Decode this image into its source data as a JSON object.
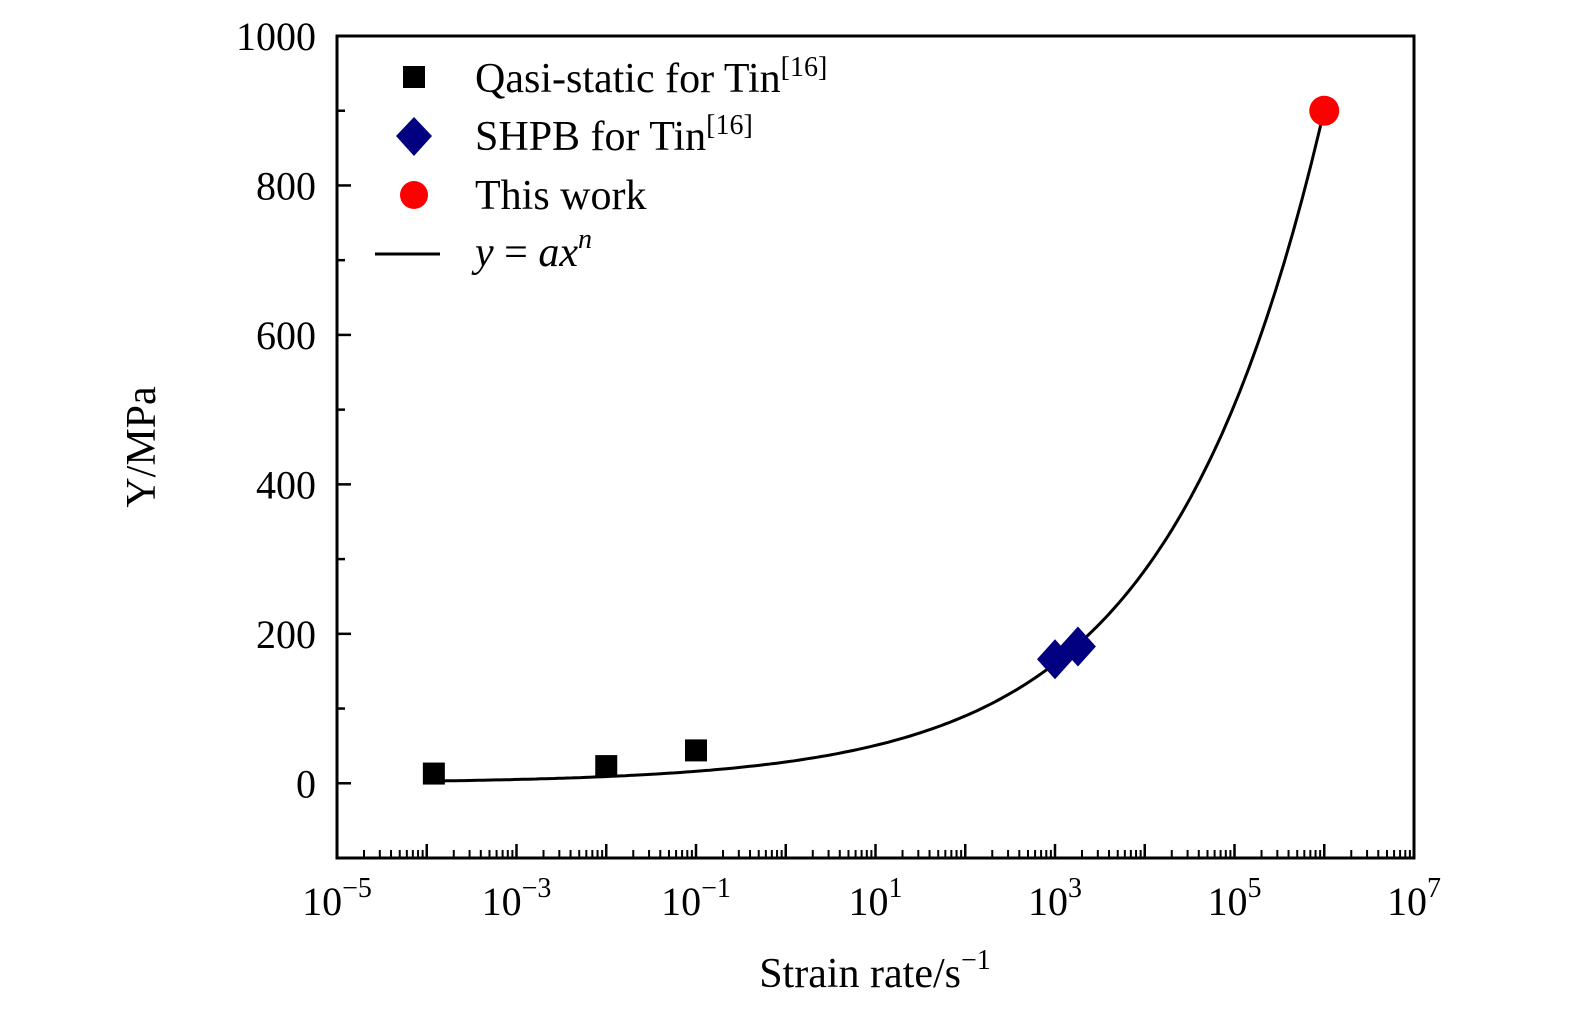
{
  "chart_data": {
    "type": "scatter",
    "title": "",
    "xlabel": "Strain rate/s",
    "xlabel_sup": "−1",
    "ylabel": "Y/MPa",
    "xscale": "log",
    "xlim_exp": [
      -5,
      7
    ],
    "ylim": [
      -100,
      1000
    ],
    "x_tick_labels": [
      {
        "base": "10",
        "exp": "−5",
        "value": -5
      },
      {
        "base": "10",
        "exp": "−3",
        "value": -3
      },
      {
        "base": "10",
        "exp": "−1",
        "value": -1
      },
      {
        "base": "10",
        "exp": "1",
        "value": 1
      },
      {
        "base": "10",
        "exp": "3",
        "value": 3
      },
      {
        "base": "10",
        "exp": "5",
        "value": 5
      },
      {
        "base": "10",
        "exp": "7",
        "value": 7
      }
    ],
    "y_ticks": [
      "0",
      "200",
      "400",
      "600",
      "800",
      "1000"
    ],
    "grid": false,
    "legend_position": "top-left",
    "series": [
      {
        "name": "Qasi-static for Tin",
        "ref": "[16]",
        "marker": "square",
        "color": "#000000",
        "points": [
          [
            0.00012,
            13
          ],
          [
            0.01,
            23
          ],
          [
            0.1,
            44
          ]
        ]
      },
      {
        "name": "SHPB for Tin",
        "ref": "[16]",
        "marker": "diamond",
        "color": "#000080",
        "points": [
          [
            1000,
            166
          ],
          [
            1800,
            183
          ]
        ]
      },
      {
        "name": "This work",
        "ref": "",
        "marker": "circle",
        "color": "#ff0000",
        "points": [
          [
            1000000,
            900
          ]
        ]
      },
      {
        "name": "y = ax^n",
        "label_y": "y",
        "label_eq": " = ",
        "label_a": "ax",
        "label_n": "n",
        "marker": "line",
        "color": "#000000",
        "fit": {
          "a": 28.5,
          "n": 0.25,
          "x_range": [
            0.00012,
            1000000
          ]
        }
      }
    ]
  }
}
